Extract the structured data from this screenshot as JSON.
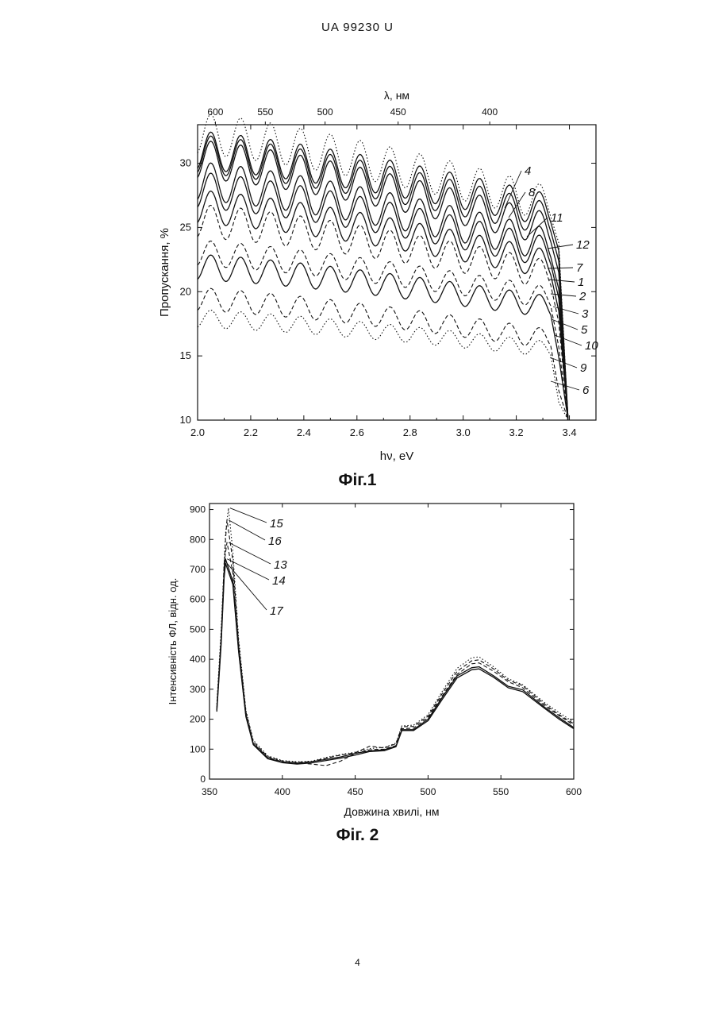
{
  "header": "UA   99230   U",
  "page_number": "4",
  "figures": {
    "fig1": {
      "caption": "Фіг.1"
    },
    "fig2": {
      "caption": "Фіг. 2"
    }
  },
  "chart_data": [
    {
      "type": "line",
      "xlabel": "hν, eV",
      "ylabel": "Пропускання, %",
      "top_axis_label": "λ, нм",
      "xlim": [
        2.0,
        3.5
      ],
      "ylim": [
        10,
        33
      ],
      "x_ticks": [
        "2.0",
        "2.2",
        "2.4",
        "2.6",
        "2.8",
        "3.0",
        "3.2",
        "3.4"
      ],
      "y_ticks": [
        "10",
        "15",
        "20",
        "25",
        "30"
      ],
      "top_ticks": [
        {
          "label": "600",
          "ev": 2.067
        },
        {
          "label": "550",
          "ev": 2.255
        },
        {
          "label": "500",
          "ev": 2.48
        },
        {
          "label": "450",
          "ev": 2.755
        },
        {
          "label": "400",
          "ev": 3.1
        }
      ],
      "series": [
        {
          "name": "4",
          "start": 32.3,
          "end": 26.8,
          "amp": 1.6,
          "style": "dot"
        },
        {
          "name": "8",
          "start": 31.0,
          "end": 26.3,
          "amp": 1.5,
          "style": "solid"
        },
        {
          "name": "11",
          "start": 30.7,
          "end": 25.6,
          "amp": 1.5,
          "style": "solid"
        },
        {
          "name": "12",
          "start": 30.3,
          "end": 24.8,
          "amp": 1.5,
          "style": "solid"
        },
        {
          "name": "7",
          "start": 28.6,
          "end": 23.6,
          "amp": 1.5,
          "style": "solid"
        },
        {
          "name": "1",
          "start": 27.9,
          "end": 23.0,
          "amp": 1.4,
          "style": "solid"
        },
        {
          "name": "2",
          "start": 26.6,
          "end": 22.1,
          "amp": 1.3,
          "style": "solid"
        },
        {
          "name": "3",
          "start": 25.5,
          "end": 21.3,
          "amp": 1.3,
          "style": "dash"
        },
        {
          "name": "5",
          "start": 23.0,
          "end": 19.5,
          "amp": 1.0,
          "style": "dash"
        },
        {
          "name": "10",
          "start": 21.9,
          "end": 18.8,
          "amp": 1.0,
          "style": "solid"
        },
        {
          "name": "9",
          "start": 19.4,
          "end": 16.3,
          "amp": 0.9,
          "style": "dash"
        },
        {
          "name": "6",
          "start": 17.9,
          "end": 15.5,
          "amp": 0.7,
          "style": "dot"
        }
      ]
    },
    {
      "type": "line",
      "xlabel": "Довжина хвилі, нм",
      "ylabel": "Інтенсивність ФЛ, відн. од.",
      "xlim": [
        350,
        600
      ],
      "ylim": [
        0,
        920
      ],
      "x_ticks": [
        "350",
        "400",
        "450",
        "500",
        "550",
        "600"
      ],
      "y_ticks": [
        "0",
        "100",
        "200",
        "300",
        "400",
        "500",
        "600",
        "700",
        "800",
        "900"
      ],
      "series": [
        {
          "name": "15",
          "peak_x": 363,
          "peak": 905,
          "style": "dot",
          "points": [
            [
              355,
              250
            ],
            [
              358,
              500
            ],
            [
              361,
              820
            ],
            [
              363,
              905
            ],
            [
              366,
              760
            ],
            [
              370,
              470
            ],
            [
              375,
              230
            ],
            [
              380,
              130
            ],
            [
              390,
              78
            ],
            [
              400,
              62
            ],
            [
              410,
              58
            ],
            [
              420,
              60
            ],
            [
              430,
              72
            ],
            [
              440,
              82
            ],
            [
              450,
              90
            ],
            [
              460,
              102
            ],
            [
              470,
              106
            ],
            [
              478,
              120
            ],
            [
              482,
              178
            ],
            [
              490,
              180
            ],
            [
              500,
              215
            ],
            [
              510,
              295
            ],
            [
              520,
              370
            ],
            [
              530,
              405
            ],
            [
              535,
              408
            ],
            [
              545,
              375
            ],
            [
              555,
              335
            ],
            [
              565,
              315
            ],
            [
              580,
              255
            ],
            [
              590,
              222
            ],
            [
              600,
              190
            ]
          ]
        },
        {
          "name": "16",
          "peak_x": 362,
          "peak": 865,
          "style": "dash",
          "points": [
            [
              355,
              240
            ],
            [
              358,
              480
            ],
            [
              361,
              800
            ],
            [
              362,
              865
            ],
            [
              366,
              730
            ],
            [
              370,
              455
            ],
            [
              375,
              225
            ],
            [
              380,
              125
            ],
            [
              390,
              75
            ],
            [
              400,
              60
            ],
            [
              410,
              56
            ],
            [
              420,
              58
            ],
            [
              430,
              70
            ],
            [
              440,
              80
            ],
            [
              450,
              88
            ],
            [
              460,
              110
            ],
            [
              470,
              104
            ],
            [
              478,
              118
            ],
            [
              482,
              175
            ],
            [
              490,
              176
            ],
            [
              500,
              210
            ],
            [
              510,
              288
            ],
            [
              520,
              360
            ],
            [
              530,
              395
            ],
            [
              535,
              398
            ],
            [
              545,
              368
            ],
            [
              555,
              330
            ],
            [
              565,
              312
            ],
            [
              580,
              250
            ],
            [
              590,
              215
            ],
            [
              600,
              185
            ]
          ]
        },
        {
          "name": "13",
          "peak_x": 362,
          "peak": 790,
          "style": "dash",
          "points": [
            [
              355,
              230
            ],
            [
              358,
              470
            ],
            [
              360,
              720
            ],
            [
              362,
              790
            ],
            [
              366,
              690
            ],
            [
              370,
              440
            ],
            [
              375,
              215
            ],
            [
              380,
              120
            ],
            [
              390,
              72
            ],
            [
              400,
              58
            ],
            [
              410,
              54
            ],
            [
              420,
              50
            ],
            [
              430,
              45
            ],
            [
              440,
              60
            ],
            [
              450,
              86
            ],
            [
              460,
              98
            ],
            [
              470,
              100
            ],
            [
              478,
              112
            ],
            [
              482,
              168
            ],
            [
              490,
              170
            ],
            [
              500,
              205
            ],
            [
              510,
              280
            ],
            [
              520,
              350
            ],
            [
              530,
              385
            ],
            [
              535,
              388
            ],
            [
              545,
              360
            ],
            [
              555,
              325
            ],
            [
              565,
              305
            ],
            [
              580,
              245
            ],
            [
              590,
              212
            ],
            [
              600,
              180
            ]
          ]
        },
        {
          "name": "14",
          "peak_x": 361,
          "peak": 735,
          "style": "solid",
          "points": [
            [
              355,
              230
            ],
            [
              358,
              460
            ],
            [
              360,
              680
            ],
            [
              361,
              735
            ],
            [
              366,
              660
            ],
            [
              370,
              430
            ],
            [
              375,
              210
            ],
            [
              380,
              118
            ],
            [
              390,
              70
            ],
            [
              400,
              56
            ],
            [
              410,
              52
            ],
            [
              420,
              58
            ],
            [
              430,
              66
            ],
            [
              440,
              74
            ],
            [
              450,
              86
            ],
            [
              460,
              94
            ],
            [
              470,
              98
            ],
            [
              478,
              110
            ],
            [
              482,
              165
            ],
            [
              490,
              165
            ],
            [
              500,
              200
            ],
            [
              510,
              275
            ],
            [
              520,
              345
            ],
            [
              530,
              372
            ],
            [
              535,
              375
            ],
            [
              545,
              345
            ],
            [
              555,
              310
            ],
            [
              565,
              298
            ],
            [
              580,
              240
            ],
            [
              590,
              205
            ],
            [
              600,
              172
            ]
          ]
        },
        {
          "name": "17",
          "peak_x": 361,
          "peak": 720,
          "style": "solid",
          "points": [
            [
              355,
              225
            ],
            [
              358,
              450
            ],
            [
              360,
              670
            ],
            [
              361,
              720
            ],
            [
              366,
              650
            ],
            [
              370,
              425
            ],
            [
              375,
              208
            ],
            [
              380,
              115
            ],
            [
              390,
              68
            ],
            [
              400,
              55
            ],
            [
              410,
              50
            ],
            [
              420,
              54
            ],
            [
              430,
              62
            ],
            [
              440,
              70
            ],
            [
              450,
              80
            ],
            [
              460,
              92
            ],
            [
              470,
              95
            ],
            [
              478,
              108
            ],
            [
              482,
              162
            ],
            [
              490,
              162
            ],
            [
              500,
              195
            ],
            [
              510,
              268
            ],
            [
              520,
              338
            ],
            [
              530,
              365
            ],
            [
              535,
              368
            ],
            [
              545,
              340
            ],
            [
              555,
              305
            ],
            [
              565,
              292
            ],
            [
              580,
              236
            ],
            [
              590,
              200
            ],
            [
              600,
              168
            ]
          ]
        }
      ]
    }
  ]
}
